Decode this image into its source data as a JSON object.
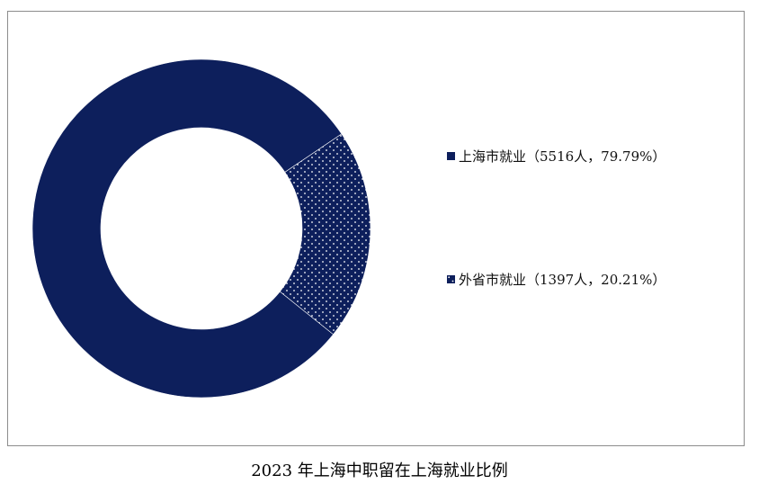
{
  "chart_data": {
    "type": "pie",
    "style": "donut",
    "title": "2023 年上海中职留在上海就业比例",
    "categories": [
      "上海市就业",
      "外省市就业"
    ],
    "values": [
      5516,
      1397
    ],
    "percentages": [
      79.79,
      20.21
    ],
    "legend": [
      "上海市就业（5516人，79.79%）",
      "外省市就业（1397人，20.21%）"
    ],
    "legend_position": "right",
    "colors": [
      "#0d1f5c",
      "#0d1f5c"
    ],
    "fills": [
      "solid",
      "dotted"
    ],
    "dot_color": "#ffffff"
  }
}
